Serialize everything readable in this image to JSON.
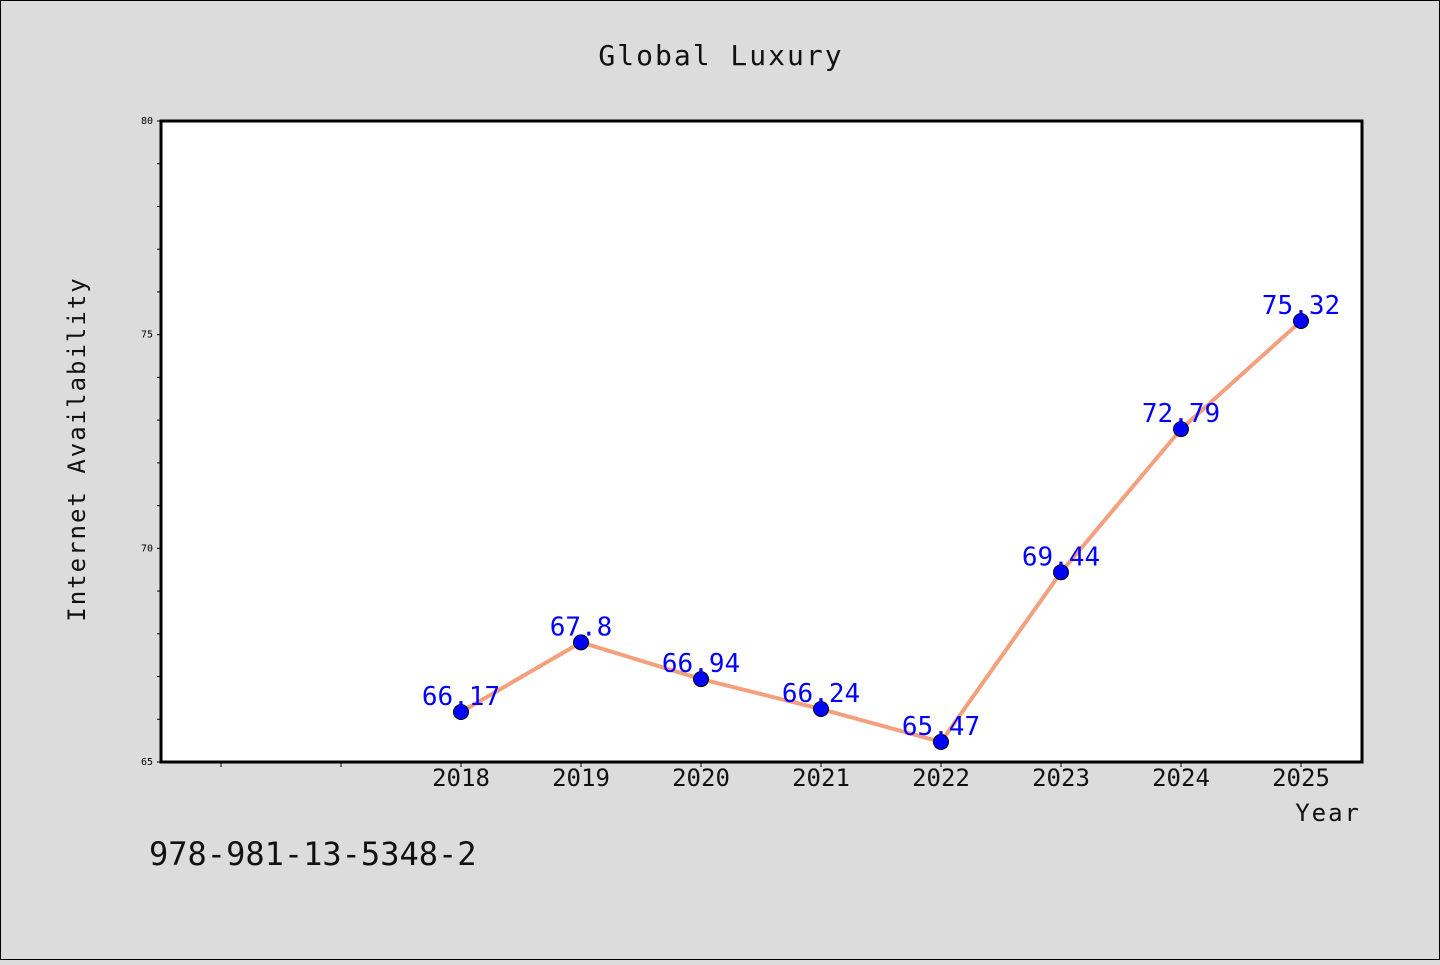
{
  "footer_text": "978-981-13-5348-2",
  "chart_data": {
    "type": "line",
    "title": "Global Luxury",
    "xlabel": "Year",
    "ylabel": "Internet Availability",
    "categories": [
      "2018",
      "2019",
      "2020",
      "2021",
      "2022",
      "2023",
      "2024",
      "2025"
    ],
    "values": [
      66.17,
      67.8,
      66.94,
      66.24,
      65.47,
      69.44,
      72.79,
      75.32
    ],
    "data_labels": [
      "66.17",
      "67.8",
      "66.94",
      "66.24",
      "65.47",
      "69.44",
      "72.79",
      "75.32"
    ],
    "ylim": [
      65,
      80
    ],
    "y_ticks": [
      "65",
      "70",
      "75",
      "80"
    ],
    "grid": false,
    "colors": {
      "line": "#f4a07c",
      "marker": "#0000ff",
      "label": "#0000ff",
      "plot_background": "#ffffff",
      "figure_background": "#dcdcdc"
    }
  }
}
